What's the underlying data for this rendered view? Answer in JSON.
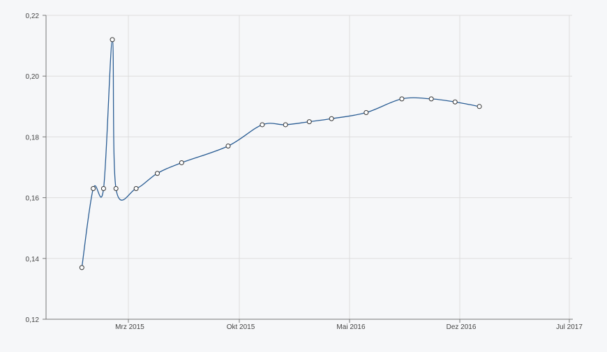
{
  "chart_data": {
    "type": "line",
    "title": "",
    "xlabel": "",
    "ylabel": "",
    "ylim": [
      0.12,
      0.22
    ],
    "y_ticks": [
      "0,12",
      "0,14",
      "0,16",
      "0,18",
      "0,20",
      "0,22"
    ],
    "x_ticks": [
      "Mrz 2015",
      "Okt 2015",
      "Mai 2016",
      "Dez 2016",
      "Jul 2017"
    ],
    "grid": true,
    "legend": "none",
    "colors": {
      "line": "#2a5d94",
      "marker_fill": "#ffffff",
      "marker_stroke": "#333333",
      "grid": "#dddddd",
      "axis": "#777777",
      "background": "#f6f7f9"
    },
    "series": [
      {
        "values": [
          {
            "x": "2014-12-01",
            "y": 0.137
          },
          {
            "x": "2014-12-23",
            "y": 0.163
          },
          {
            "x": "2015-01-12",
            "y": 0.163
          },
          {
            "x": "2015-01-29",
            "y": 0.212
          },
          {
            "x": "2015-02-05",
            "y": 0.163
          },
          {
            "x": "2015-03-16",
            "y": 0.163
          },
          {
            "x": "2015-04-26",
            "y": 0.168
          },
          {
            "x": "2015-06-12",
            "y": 0.1715
          },
          {
            "x": "2015-09-10",
            "y": 0.177
          },
          {
            "x": "2015-11-15",
            "y": 0.184
          },
          {
            "x": "2015-12-30",
            "y": 0.184
          },
          {
            "x": "2016-02-14",
            "y": 0.185
          },
          {
            "x": "2016-03-28",
            "y": 0.186
          },
          {
            "x": "2016-06-03",
            "y": 0.188
          },
          {
            "x": "2016-08-11",
            "y": 0.1925
          },
          {
            "x": "2016-10-07",
            "y": 0.1925
          },
          {
            "x": "2016-11-22",
            "y": 0.1915
          },
          {
            "x": "2017-01-08",
            "y": 0.19
          }
        ]
      }
    ]
  }
}
